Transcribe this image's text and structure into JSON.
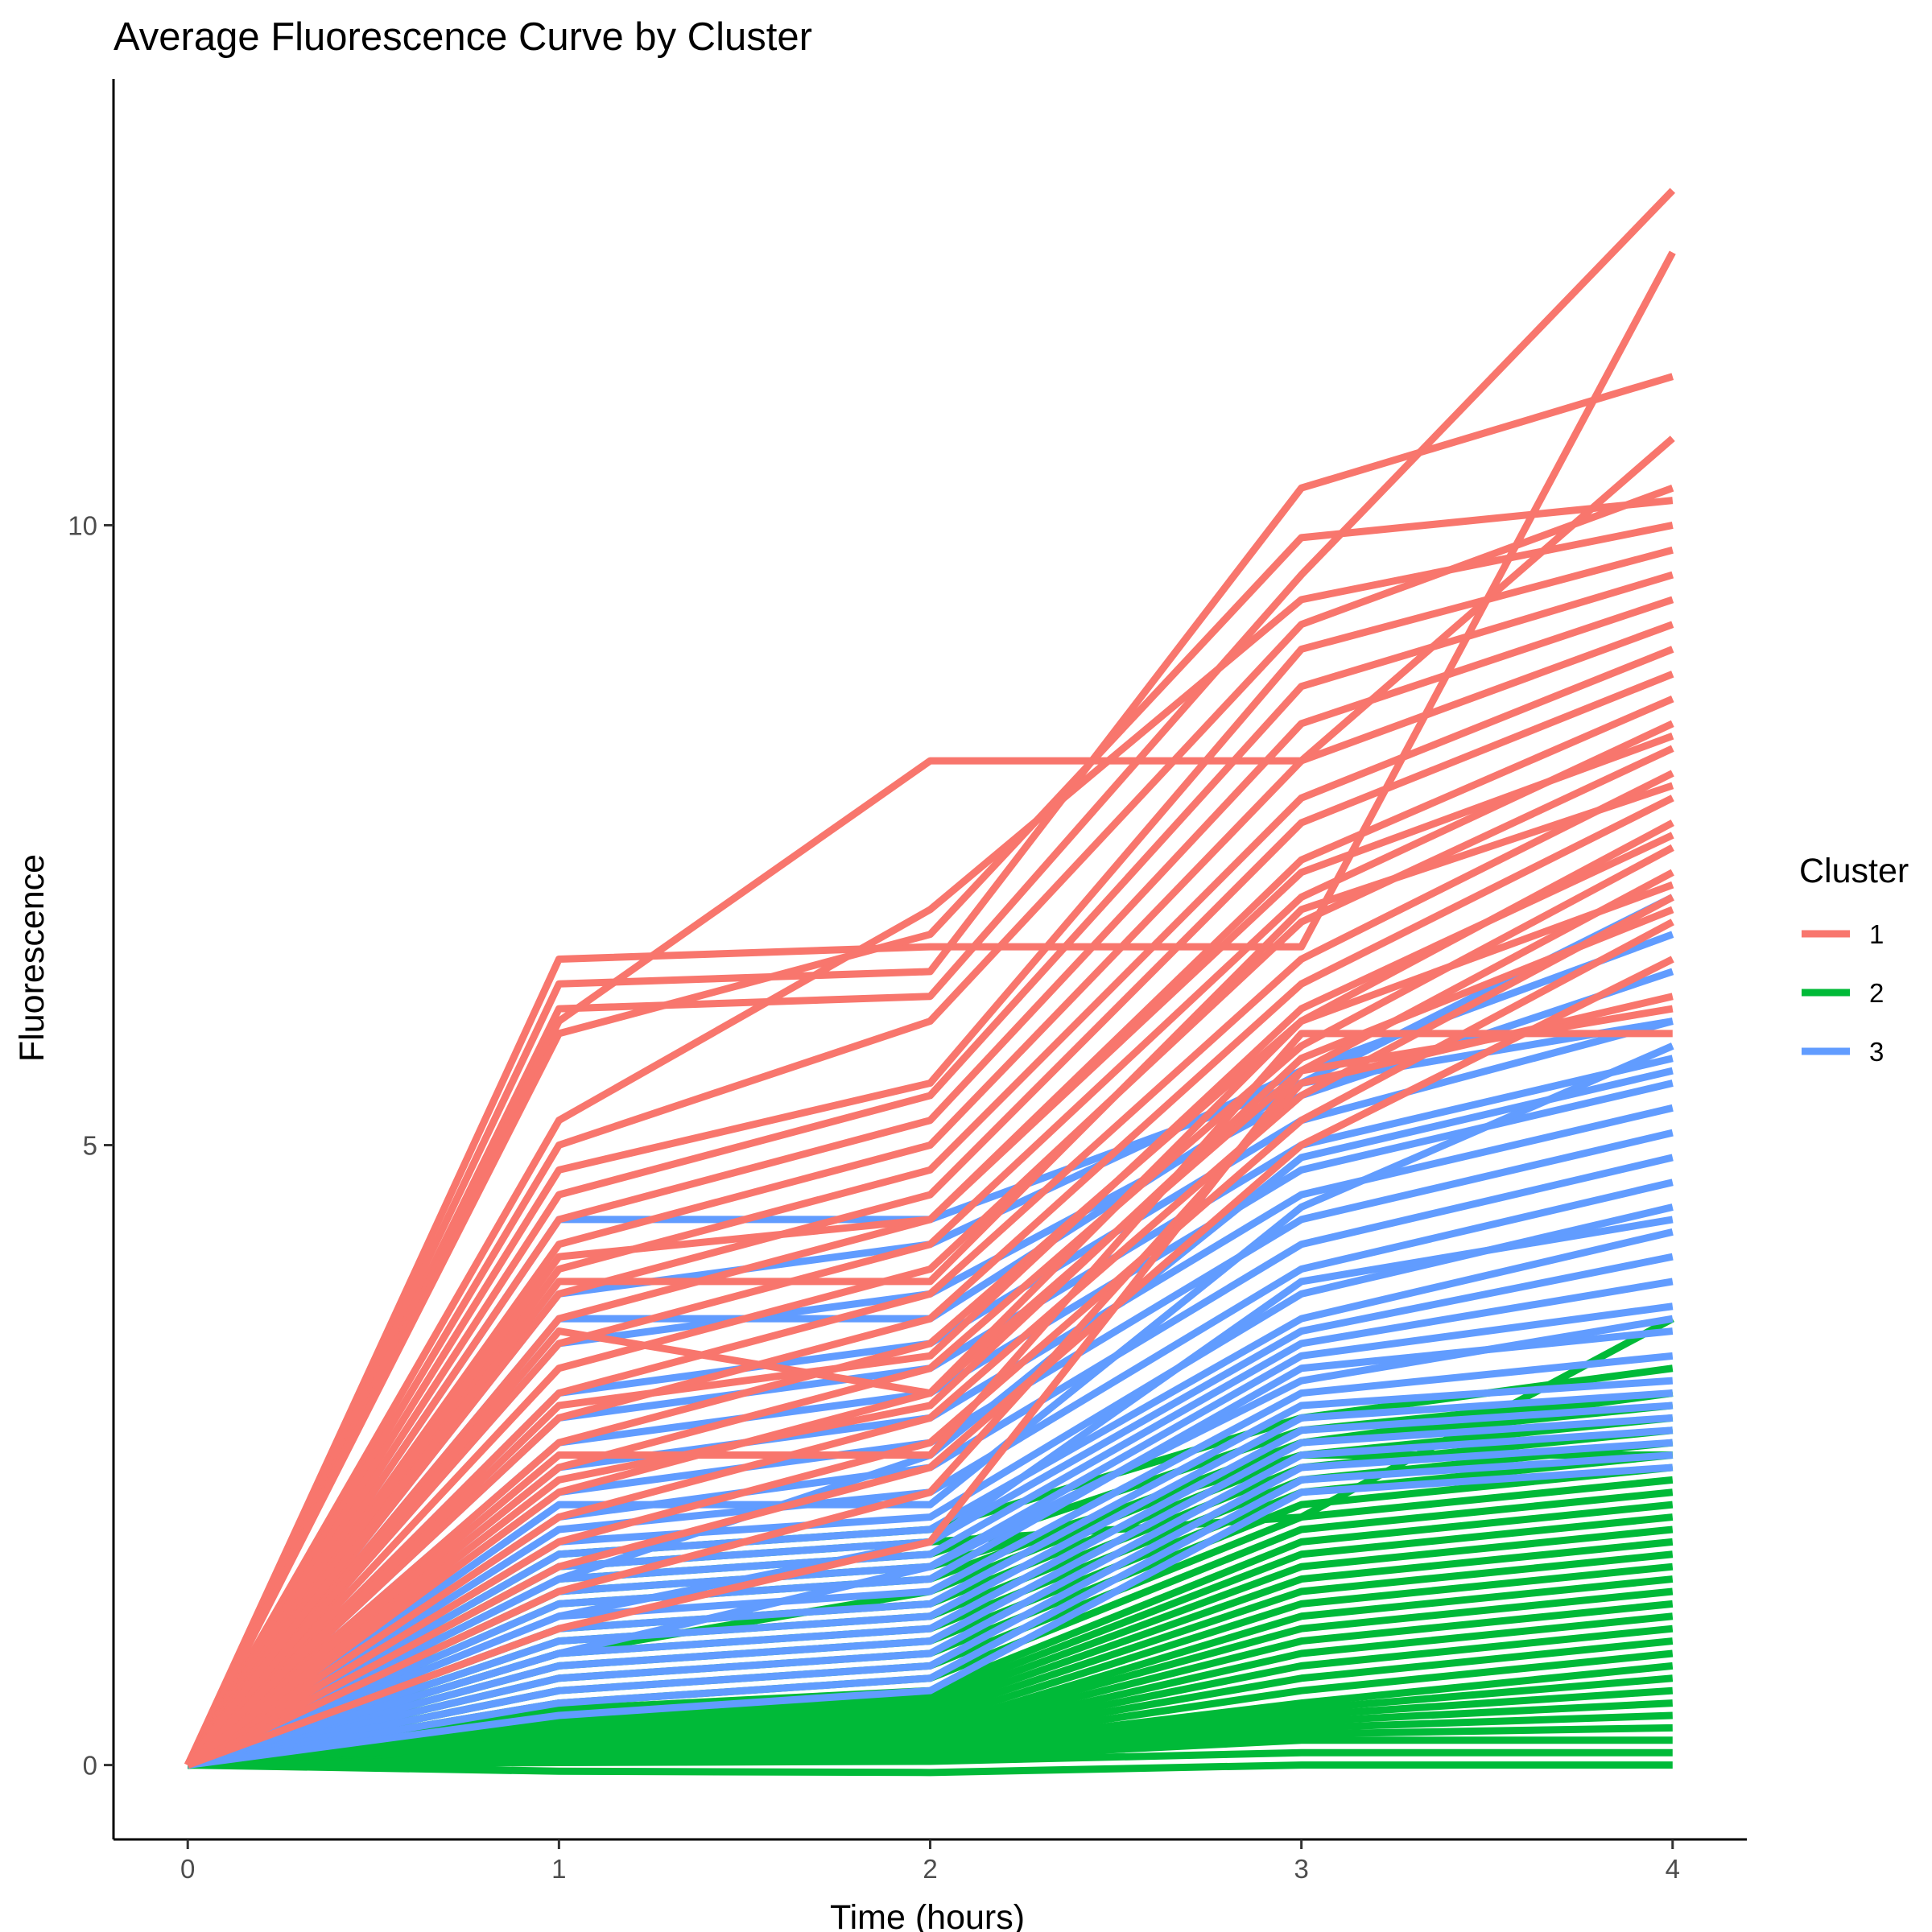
{
  "chart_data": {
    "type": "line",
    "title": "Average Fluorescence Curve by Cluster",
    "xlabel": "Time (hours)",
    "ylabel": "Fluorescence",
    "x": [
      0,
      1,
      2,
      3,
      4
    ],
    "x_ticks": [
      "0",
      "1",
      "2",
      "3",
      "4"
    ],
    "y_ticks": [
      "0",
      "5",
      "10"
    ],
    "xlim": [
      -0.2,
      4.2
    ],
    "ylim": [
      -0.6,
      13.6
    ],
    "grid": false,
    "legend": {
      "title": "Cluster",
      "placement": "right",
      "entries": [
        {
          "label": "1",
          "color": "#F8766D"
        },
        {
          "label": "2",
          "color": "#00BA38"
        },
        {
          "label": "3",
          "color": "#619CFF"
        }
      ]
    },
    "series": [
      {
        "cluster": "1",
        "color": "#F8766D",
        "values": [
          0,
          6.5,
          6.6,
          6.6,
          12.2
        ]
      },
      {
        "cluster": "1",
        "color": "#F8766D",
        "values": [
          0,
          6.3,
          6.4,
          10.3,
          11.2
        ]
      },
      {
        "cluster": "1",
        "color": "#F8766D",
        "values": [
          0,
          6.1,
          6.2,
          9.6,
          12.7
        ]
      },
      {
        "cluster": "1",
        "color": "#F8766D",
        "values": [
          0,
          6.0,
          8.1,
          8.1,
          10.7
        ]
      },
      {
        "cluster": "1",
        "color": "#F8766D",
        "values": [
          0,
          5.9,
          6.7,
          9.9,
          10.2
        ]
      },
      {
        "cluster": "1",
        "color": "#F8766D",
        "values": [
          0,
          5.2,
          6.9,
          9.4,
          10.0
        ]
      },
      {
        "cluster": "1",
        "color": "#F8766D",
        "values": [
          0,
          5.0,
          6.0,
          9.2,
          10.3
        ]
      },
      {
        "cluster": "1",
        "color": "#F8766D",
        "values": [
          0,
          4.8,
          5.5,
          9.0,
          9.8
        ]
      },
      {
        "cluster": "1",
        "color": "#F8766D",
        "values": [
          0,
          4.6,
          5.4,
          8.7,
          9.6
        ]
      },
      {
        "cluster": "1",
        "color": "#F8766D",
        "values": [
          0,
          4.4,
          5.2,
          8.4,
          9.4
        ]
      },
      {
        "cluster": "1",
        "color": "#F8766D",
        "values": [
          0,
          4.2,
          5.0,
          8.1,
          9.2
        ]
      },
      {
        "cluster": "1",
        "color": "#F8766D",
        "values": [
          0,
          4.0,
          4.8,
          7.8,
          9.0
        ]
      },
      {
        "cluster": "1",
        "color": "#F8766D",
        "values": [
          0,
          3.8,
          4.6,
          7.6,
          8.8
        ]
      },
      {
        "cluster": "1",
        "color": "#F8766D",
        "values": [
          0,
          3.6,
          4.4,
          7.3,
          8.6
        ]
      },
      {
        "cluster": "1",
        "color": "#F8766D",
        "values": [
          0,
          3.4,
          4.2,
          7.0,
          8.4
        ]
      },
      {
        "cluster": "1",
        "color": "#F8766D",
        "values": [
          0,
          3.2,
          4.0,
          6.8,
          8.2
        ]
      },
      {
        "cluster": "1",
        "color": "#F8766D",
        "values": [
          0,
          3.0,
          3.8,
          6.5,
          8.0
        ]
      },
      {
        "cluster": "1",
        "color": "#F8766D",
        "values": [
          0,
          2.8,
          3.6,
          6.3,
          7.8
        ]
      },
      {
        "cluster": "1",
        "color": "#F8766D",
        "values": [
          0,
          2.6,
          3.4,
          6.0,
          7.6
        ]
      },
      {
        "cluster": "1",
        "color": "#F8766D",
        "values": [
          0,
          2.4,
          3.2,
          5.8,
          7.4
        ]
      },
      {
        "cluster": "1",
        "color": "#F8766D",
        "values": [
          0,
          2.2,
          3.0,
          5.6,
          7.2
        ]
      },
      {
        "cluster": "1",
        "color": "#F8766D",
        "values": [
          0,
          2.0,
          2.8,
          5.4,
          7.0
        ]
      },
      {
        "cluster": "1",
        "color": "#F8766D",
        "values": [
          0,
          1.8,
          2.6,
          5.2,
          6.8
        ]
      },
      {
        "cluster": "1",
        "color": "#F8766D",
        "values": [
          0,
          1.6,
          2.4,
          5.0,
          6.5
        ]
      },
      {
        "cluster": "1",
        "color": "#F8766D",
        "values": [
          0,
          1.4,
          2.2,
          5.5,
          6.2
        ]
      },
      {
        "cluster": "1",
        "color": "#F8766D",
        "values": [
          0,
          1.1,
          1.8,
          5.6,
          6.1
        ]
      },
      {
        "cluster": "1",
        "color": "#F8766D",
        "values": [
          0,
          2.5,
          2.5,
          5.9,
          5.9
        ]
      },
      {
        "cluster": "1",
        "color": "#F8766D",
        "values": [
          0,
          3.5,
          3.0,
          6.0,
          7.1
        ]
      },
      {
        "cluster": "1",
        "color": "#F8766D",
        "values": [
          0,
          4.1,
          4.4,
          7.2,
          8.3
        ]
      },
      {
        "cluster": "1",
        "color": "#F8766D",
        "values": [
          0,
          3.9,
          3.9,
          6.9,
          7.9
        ]
      },
      {
        "cluster": "1",
        "color": "#F8766D",
        "values": [
          0,
          2.9,
          3.3,
          6.1,
          7.5
        ]
      },
      {
        "cluster": "1",
        "color": "#F8766D",
        "values": [
          0,
          2.3,
          2.9,
          5.7,
          6.9
        ]
      },
      {
        "cluster": "3",
        "color": "#619CFF",
        "values": [
          0,
          4.4,
          4.4,
          5.5,
          7.0
        ]
      },
      {
        "cluster": "3",
        "color": "#619CFF",
        "values": [
          0,
          3.8,
          4.2,
          5.6,
          6.7
        ]
      },
      {
        "cluster": "3",
        "color": "#619CFF",
        "values": [
          0,
          3.4,
          3.8,
          5.4,
          6.4
        ]
      },
      {
        "cluster": "3",
        "color": "#619CFF",
        "values": [
          0,
          3.0,
          3.4,
          5.2,
          6.0
        ]
      },
      {
        "cluster": "3",
        "color": "#619CFF",
        "values": [
          0,
          2.8,
          3.2,
          5.0,
          5.7
        ]
      },
      {
        "cluster": "3",
        "color": "#619CFF",
        "values": [
          0,
          2.6,
          3.0,
          4.8,
          5.5
        ]
      },
      {
        "cluster": "3",
        "color": "#619CFF",
        "values": [
          0,
          2.4,
          2.8,
          4.6,
          5.3
        ]
      },
      {
        "cluster": "3",
        "color": "#619CFF",
        "values": [
          0,
          2.2,
          2.6,
          4.4,
          5.1
        ]
      },
      {
        "cluster": "3",
        "color": "#619CFF",
        "values": [
          0,
          2.0,
          2.4,
          4.2,
          4.9
        ]
      },
      {
        "cluster": "3",
        "color": "#619CFF",
        "values": [
          0,
          1.9,
          2.2,
          4.0,
          4.7
        ]
      },
      {
        "cluster": "3",
        "color": "#619CFF",
        "values": [
          0,
          1.8,
          2.0,
          3.8,
          4.5
        ]
      },
      {
        "cluster": "3",
        "color": "#619CFF",
        "values": [
          0,
          1.7,
          1.9,
          3.6,
          4.3
        ]
      },
      {
        "cluster": "3",
        "color": "#619CFF",
        "values": [
          0,
          1.6,
          1.8,
          3.5,
          4.1
        ]
      },
      {
        "cluster": "3",
        "color": "#619CFF",
        "values": [
          0,
          1.5,
          1.7,
          3.4,
          3.9
        ]
      },
      {
        "cluster": "3",
        "color": "#619CFF",
        "values": [
          0,
          1.4,
          1.6,
          3.3,
          3.7
        ]
      },
      {
        "cluster": "3",
        "color": "#619CFF",
        "values": [
          0,
          1.3,
          1.5,
          3.2,
          3.5
        ]
      },
      {
        "cluster": "3",
        "color": "#619CFF",
        "values": [
          0,
          1.2,
          1.4,
          3.0,
          3.3
        ]
      },
      {
        "cluster": "3",
        "color": "#619CFF",
        "values": [
          0,
          1.1,
          1.3,
          2.9,
          3.1
        ]
      },
      {
        "cluster": "3",
        "color": "#619CFF",
        "values": [
          0,
          1.0,
          1.2,
          2.8,
          3.0
        ]
      },
      {
        "cluster": "3",
        "color": "#619CFF",
        "values": [
          0,
          0.9,
          1.1,
          2.7,
          2.9
        ]
      },
      {
        "cluster": "3",
        "color": "#619CFF",
        "values": [
          0,
          0.8,
          1.0,
          2.6,
          2.8
        ]
      },
      {
        "cluster": "3",
        "color": "#619CFF",
        "values": [
          0,
          0.7,
          0.9,
          2.5,
          2.7
        ]
      },
      {
        "cluster": "3",
        "color": "#619CFF",
        "values": [
          0,
          0.6,
          0.8,
          2.4,
          2.6
        ]
      },
      {
        "cluster": "3",
        "color": "#619CFF",
        "values": [
          0,
          0.5,
          0.7,
          2.3,
          2.5
        ]
      },
      {
        "cluster": "3",
        "color": "#619CFF",
        "values": [
          0,
          0.4,
          0.6,
          2.2,
          2.4
        ]
      },
      {
        "cluster": "3",
        "color": "#619CFF",
        "values": [
          0,
          3.6,
          3.6,
          5.5,
          6.0
        ]
      },
      {
        "cluster": "3",
        "color": "#619CFF",
        "values": [
          0,
          2.1,
          2.1,
          4.5,
          5.8
        ]
      },
      {
        "cluster": "3",
        "color": "#619CFF",
        "values": [
          0,
          1.5,
          2.5,
          4.9,
          5.6
        ]
      },
      {
        "cluster": "3",
        "color": "#619CFF",
        "values": [
          0,
          1.2,
          1.8,
          3.9,
          4.4
        ]
      },
      {
        "cluster": "3",
        "color": "#619CFF",
        "values": [
          0,
          0.9,
          1.6,
          3.1,
          3.6
        ]
      },
      {
        "cluster": "2",
        "color": "#00BA38",
        "values": [
          0,
          1.7,
          1.9,
          2.8,
          3.2
        ]
      },
      {
        "cluster": "2",
        "color": "#00BA38",
        "values": [
          0,
          1.5,
          1.7,
          2.7,
          3.0
        ]
      },
      {
        "cluster": "2",
        "color": "#00BA38",
        "values": [
          0,
          1.3,
          1.5,
          2.6,
          2.9
        ]
      },
      {
        "cluster": "2",
        "color": "#00BA38",
        "values": [
          0,
          1.1,
          1.3,
          2.5,
          2.8
        ]
      },
      {
        "cluster": "2",
        "color": "#00BA38",
        "values": [
          0,
          1.0,
          1.2,
          2.4,
          2.7
        ]
      },
      {
        "cluster": "2",
        "color": "#00BA38",
        "values": [
          0,
          0.9,
          1.1,
          2.3,
          2.6
        ]
      },
      {
        "cluster": "2",
        "color": "#00BA38",
        "values": [
          0,
          0.8,
          1.0,
          2.2,
          2.5
        ]
      },
      {
        "cluster": "2",
        "color": "#00BA38",
        "values": [
          0,
          0.7,
          0.9,
          2.1,
          2.4
        ]
      },
      {
        "cluster": "2",
        "color": "#00BA38",
        "values": [
          0,
          0.6,
          0.8,
          2.0,
          2.3
        ]
      },
      {
        "cluster": "2",
        "color": "#00BA38",
        "values": [
          0,
          0.5,
          0.7,
          1.9,
          2.2
        ]
      },
      {
        "cluster": "2",
        "color": "#00BA38",
        "values": [
          0,
          0.45,
          0.6,
          1.8,
          2.1
        ]
      },
      {
        "cluster": "2",
        "color": "#00BA38",
        "values": [
          0,
          0.4,
          0.55,
          1.7,
          2.0
        ]
      },
      {
        "cluster": "2",
        "color": "#00BA38",
        "values": [
          0,
          0.35,
          0.5,
          1.6,
          1.9
        ]
      },
      {
        "cluster": "2",
        "color": "#00BA38",
        "values": [
          0,
          0.3,
          0.45,
          1.5,
          1.8
        ]
      },
      {
        "cluster": "2",
        "color": "#00BA38",
        "values": [
          0,
          0.28,
          0.4,
          1.4,
          1.7
        ]
      },
      {
        "cluster": "2",
        "color": "#00BA38",
        "values": [
          0,
          0.25,
          0.35,
          1.3,
          1.6
        ]
      },
      {
        "cluster": "2",
        "color": "#00BA38",
        "values": [
          0,
          0.22,
          0.3,
          1.2,
          1.5
        ]
      },
      {
        "cluster": "2",
        "color": "#00BA38",
        "values": [
          0,
          0.2,
          0.28,
          1.1,
          1.4
        ]
      },
      {
        "cluster": "2",
        "color": "#00BA38",
        "values": [
          0,
          0.18,
          0.25,
          1.0,
          1.3
        ]
      },
      {
        "cluster": "2",
        "color": "#00BA38",
        "values": [
          0,
          0.16,
          0.22,
          0.9,
          1.2
        ]
      },
      {
        "cluster": "2",
        "color": "#00BA38",
        "values": [
          0,
          0.14,
          0.2,
          0.8,
          1.1
        ]
      },
      {
        "cluster": "2",
        "color": "#00BA38",
        "values": [
          0,
          0.12,
          0.18,
          0.7,
          1.0
        ]
      },
      {
        "cluster": "2",
        "color": "#00BA38",
        "values": [
          0,
          0.1,
          0.16,
          0.6,
          0.9
        ]
      },
      {
        "cluster": "2",
        "color": "#00BA38",
        "values": [
          0,
          0.09,
          0.14,
          0.5,
          0.8
        ]
      },
      {
        "cluster": "2",
        "color": "#00BA38",
        "values": [
          0,
          0.08,
          0.12,
          0.45,
          0.7
        ]
      },
      {
        "cluster": "2",
        "color": "#00BA38",
        "values": [
          0,
          0.07,
          0.1,
          0.4,
          0.6
        ]
      },
      {
        "cluster": "2",
        "color": "#00BA38",
        "values": [
          0,
          0.06,
          0.09,
          0.35,
          0.5
        ]
      },
      {
        "cluster": "2",
        "color": "#00BA38",
        "values": [
          0,
          0.05,
          0.08,
          0.3,
          0.4
        ]
      },
      {
        "cluster": "2",
        "color": "#00BA38",
        "values": [
          0,
          0.04,
          0.06,
          0.25,
          0.3
        ]
      },
      {
        "cluster": "2",
        "color": "#00BA38",
        "values": [
          0,
          0.03,
          0.05,
          0.2,
          0.2
        ]
      },
      {
        "cluster": "2",
        "color": "#00BA38",
        "values": [
          0,
          0.02,
          0.03,
          0.1,
          0.1
        ]
      },
      {
        "cluster": "2",
        "color": "#00BA38",
        "values": [
          0,
          -0.05,
          -0.06,
          0.0,
          0.0
        ]
      },
      {
        "cluster": "2",
        "color": "#00BA38",
        "values": [
          0,
          1.6,
          1.8,
          2.0,
          3.6
        ]
      },
      {
        "cluster": "2",
        "color": "#00BA38",
        "values": [
          0,
          1.4,
          1.6,
          2.5,
          2.5
        ]
      },
      {
        "cluster": "2",
        "color": "#00BA38",
        "values": [
          0,
          0.9,
          1.4,
          2.6,
          3.0
        ]
      }
    ]
  }
}
